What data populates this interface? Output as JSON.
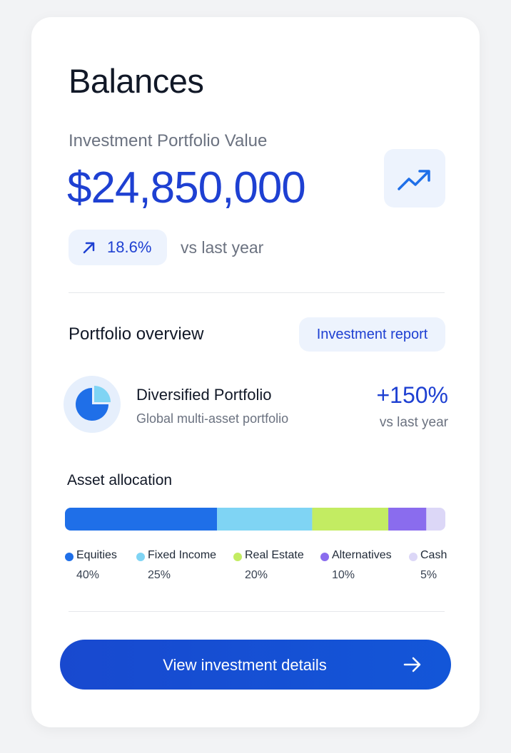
{
  "header": {
    "title": "Balances"
  },
  "portfolio_value": {
    "label": "Investment Portfolio Value",
    "amount": "$24,850,000",
    "change": "18.6%",
    "change_note": "vs last year"
  },
  "overview": {
    "title": "Portfolio overview",
    "report_button": "Investment report",
    "portfolio": {
      "name": "Diversified Portfolio",
      "description": "Global multi-asset portfolio",
      "change": "+150%",
      "change_note": "vs last year"
    }
  },
  "allocation": {
    "title": "Asset allocation",
    "items": [
      {
        "name": "Equities",
        "value": 40,
        "value_label": "40%",
        "color": "#1f6fe8"
      },
      {
        "name": "Fixed Income",
        "value": 25,
        "value_label": "25%",
        "color": "#7fd4f4"
      },
      {
        "name": "Real Estate",
        "value": 20,
        "value_label": "20%",
        "color": "#c3ec62"
      },
      {
        "name": "Alternatives",
        "value": 10,
        "value_label": "10%",
        "color": "#8a6cee"
      },
      {
        "name": "Cash",
        "value": 5,
        "value_label": "5%",
        "color": "#dcd7f7"
      }
    ]
  },
  "footer": {
    "button": "View investment details"
  }
}
